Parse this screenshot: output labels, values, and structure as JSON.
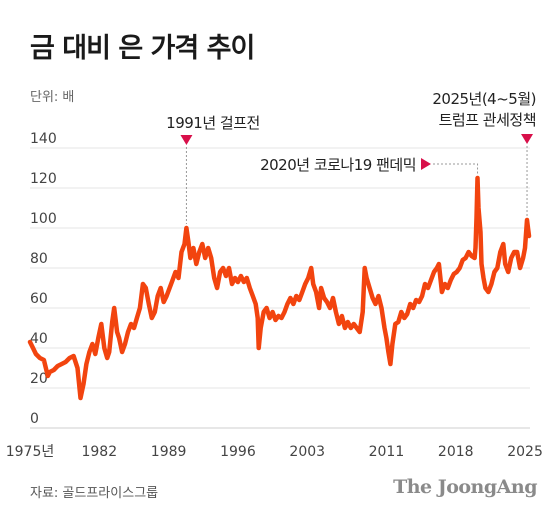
{
  "header": {
    "title": "금 대비 은 가격 추이",
    "unit": "단위: 배",
    "source": "자료: 골드프라이스그룹",
    "brand": "The JoongAng"
  },
  "colors": {
    "series": "#f2440f",
    "annotation": "#d8104a",
    "grid": "#e4e4e4",
    "text": "#222222"
  },
  "chart_data": {
    "type": "line",
    "title": "금 대비 은 가격 추이",
    "ylabel": "단위: 배",
    "xlabel": "",
    "xlim": [
      1975,
      2025.5
    ],
    "ylim": [
      0,
      140
    ],
    "x_ticks": [
      1975,
      1982,
      1989,
      1996,
      2003,
      2011,
      2018,
      2025
    ],
    "x_tick_labels": [
      "1975년",
      "1982",
      "1989",
      "1996",
      "2003",
      "2011",
      "2018",
      "2025"
    ],
    "y_ticks": [
      0,
      20,
      40,
      60,
      80,
      100,
      120,
      140
    ],
    "grid": true,
    "annotations": [
      {
        "lines": [
          "1991년 걸프전"
        ],
        "x": 1990.8,
        "y": 100
      },
      {
        "lines": [
          "2020년 코로나19 팬데믹"
        ],
        "x": 2020.2,
        "y": 125
      },
      {
        "lines": [
          "2025년(4~5월)",
          "트럼프 관세정책"
        ],
        "x": 2025.2,
        "y": 104
      }
    ],
    "series": [
      {
        "values": [
          [
            1975.0,
            43
          ],
          [
            1975.3,
            40
          ],
          [
            1975.6,
            37
          ],
          [
            1976.0,
            35
          ],
          [
            1976.4,
            34
          ],
          [
            1976.8,
            26
          ],
          [
            1977.0,
            28
          ],
          [
            1977.4,
            29
          ],
          [
            1977.8,
            31
          ],
          [
            1978.2,
            32
          ],
          [
            1978.6,
            33
          ],
          [
            1979.0,
            35
          ],
          [
            1979.4,
            36
          ],
          [
            1979.8,
            30
          ],
          [
            1980.0,
            20
          ],
          [
            1980.1,
            15
          ],
          [
            1980.4,
            22
          ],
          [
            1980.7,
            32
          ],
          [
            1981.0,
            38
          ],
          [
            1981.3,
            42
          ],
          [
            1981.6,
            37
          ],
          [
            1981.9,
            45
          ],
          [
            1982.2,
            52
          ],
          [
            1982.5,
            40
          ],
          [
            1982.8,
            35
          ],
          [
            1983.0,
            38
          ],
          [
            1983.3,
            53
          ],
          [
            1983.5,
            60
          ],
          [
            1983.8,
            48
          ],
          [
            1984.0,
            45
          ],
          [
            1984.3,
            38
          ],
          [
            1984.6,
            42
          ],
          [
            1984.9,
            48
          ],
          [
            1985.2,
            52
          ],
          [
            1985.5,
            50
          ],
          [
            1985.8,
            55
          ],
          [
            1986.1,
            60
          ],
          [
            1986.4,
            72
          ],
          [
            1986.7,
            70
          ],
          [
            1987.0,
            62
          ],
          [
            1987.3,
            55
          ],
          [
            1987.6,
            58
          ],
          [
            1987.9,
            66
          ],
          [
            1988.2,
            70
          ],
          [
            1988.5,
            63
          ],
          [
            1988.8,
            66
          ],
          [
            1989.1,
            70
          ],
          [
            1989.4,
            74
          ],
          [
            1989.7,
            78
          ],
          [
            1990.0,
            75
          ],
          [
            1990.3,
            88
          ],
          [
            1990.6,
            92
          ],
          [
            1990.8,
            100
          ],
          [
            1991.0,
            93
          ],
          [
            1991.2,
            85
          ],
          [
            1991.5,
            90
          ],
          [
            1991.8,
            82
          ],
          [
            1992.1,
            88
          ],
          [
            1992.4,
            92
          ],
          [
            1992.7,
            85
          ],
          [
            1993.0,
            90
          ],
          [
            1993.3,
            85
          ],
          [
            1993.6,
            75
          ],
          [
            1993.9,
            70
          ],
          [
            1994.2,
            78
          ],
          [
            1994.5,
            80
          ],
          [
            1994.8,
            76
          ],
          [
            1995.1,
            80
          ],
          [
            1995.4,
            72
          ],
          [
            1995.7,
            75
          ],
          [
            1996.0,
            73
          ],
          [
            1996.3,
            76
          ],
          [
            1996.6,
            73
          ],
          [
            1996.9,
            75
          ],
          [
            1997.2,
            70
          ],
          [
            1997.5,
            66
          ],
          [
            1997.8,
            62
          ],
          [
            1998.0,
            55
          ],
          [
            1998.1,
            40
          ],
          [
            1998.3,
            50
          ],
          [
            1998.6,
            58
          ],
          [
            1998.9,
            60
          ],
          [
            1999.2,
            55
          ],
          [
            1999.5,
            58
          ],
          [
            1999.8,
            54
          ],
          [
            2000.1,
            56
          ],
          [
            2000.4,
            55
          ],
          [
            2000.7,
            58
          ],
          [
            2001.0,
            62
          ],
          [
            2001.3,
            65
          ],
          [
            2001.6,
            62
          ],
          [
            2001.9,
            66
          ],
          [
            2002.2,
            64
          ],
          [
            2002.5,
            68
          ],
          [
            2002.8,
            72
          ],
          [
            2003.1,
            75
          ],
          [
            2003.4,
            80
          ],
          [
            2003.6,
            72
          ],
          [
            2003.9,
            68
          ],
          [
            2004.2,
            60
          ],
          [
            2004.4,
            70
          ],
          [
            2004.7,
            65
          ],
          [
            2005.0,
            63
          ],
          [
            2005.3,
            60
          ],
          [
            2005.6,
            65
          ],
          [
            2005.9,
            58
          ],
          [
            2006.2,
            52
          ],
          [
            2006.5,
            56
          ],
          [
            2006.8,
            50
          ],
          [
            2007.1,
            53
          ],
          [
            2007.4,
            50
          ],
          [
            2007.7,
            52
          ],
          [
            2008.0,
            50
          ],
          [
            2008.3,
            48
          ],
          [
            2008.6,
            58
          ],
          [
            2008.8,
            80
          ],
          [
            2009.0,
            75
          ],
          [
            2009.3,
            70
          ],
          [
            2009.6,
            65
          ],
          [
            2009.9,
            62
          ],
          [
            2010.2,
            66
          ],
          [
            2010.5,
            60
          ],
          [
            2010.8,
            50
          ],
          [
            2011.0,
            45
          ],
          [
            2011.2,
            38
          ],
          [
            2011.4,
            32
          ],
          [
            2011.6,
            42
          ],
          [
            2011.9,
            52
          ],
          [
            2012.2,
            53
          ],
          [
            2012.5,
            58
          ],
          [
            2012.8,
            55
          ],
          [
            2013.1,
            57
          ],
          [
            2013.4,
            62
          ],
          [
            2013.7,
            60
          ],
          [
            2014.0,
            64
          ],
          [
            2014.3,
            63
          ],
          [
            2014.6,
            66
          ],
          [
            2014.9,
            72
          ],
          [
            2015.2,
            70
          ],
          [
            2015.5,
            74
          ],
          [
            2015.8,
            78
          ],
          [
            2016.1,
            80
          ],
          [
            2016.3,
            82
          ],
          [
            2016.6,
            68
          ],
          [
            2016.9,
            72
          ],
          [
            2017.2,
            70
          ],
          [
            2017.5,
            74
          ],
          [
            2017.8,
            77
          ],
          [
            2018.1,
            78
          ],
          [
            2018.4,
            80
          ],
          [
            2018.7,
            84
          ],
          [
            2019.0,
            85
          ],
          [
            2019.3,
            88
          ],
          [
            2019.6,
            86
          ],
          [
            2019.9,
            85
          ],
          [
            2020.0,
            90
          ],
          [
            2020.1,
            105
          ],
          [
            2020.2,
            125
          ],
          [
            2020.3,
            110
          ],
          [
            2020.5,
            98
          ],
          [
            2020.6,
            82
          ],
          [
            2020.8,
            75
          ],
          [
            2021.0,
            70
          ],
          [
            2021.3,
            68
          ],
          [
            2021.6,
            72
          ],
          [
            2021.9,
            78
          ],
          [
            2022.2,
            80
          ],
          [
            2022.5,
            88
          ],
          [
            2022.8,
            92
          ],
          [
            2023.0,
            82
          ],
          [
            2023.3,
            78
          ],
          [
            2023.6,
            85
          ],
          [
            2023.9,
            88
          ],
          [
            2024.2,
            88
          ],
          [
            2024.5,
            80
          ],
          [
            2024.8,
            85
          ],
          [
            2025.0,
            90
          ],
          [
            2025.2,
            104
          ],
          [
            2025.4,
            96
          ]
        ]
      }
    ]
  }
}
